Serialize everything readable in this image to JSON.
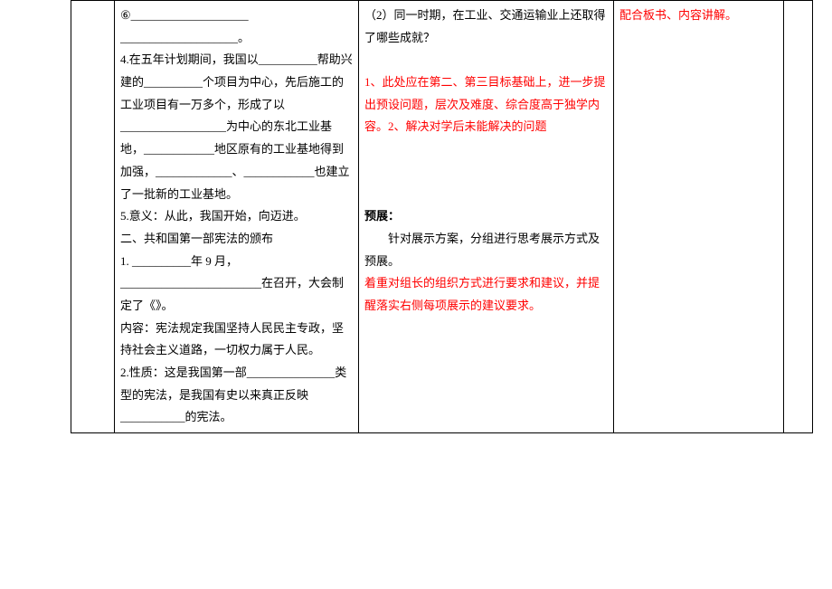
{
  "col1": {
    "line_6": "⑥____________________",
    "line_6b": "____________________。",
    "line_4": "4.在五年计划期间，我国以__________帮助兴建的__________个项目为中心，先后施工的工业项目有一万多个，形成了以__________________为中心的东北工业基地，____________地区原有的工业基地得到加强，_____________、____________也建立了一批新的工业基地。",
    "line_5": "5.意义：从此，我国开始，向迈进。",
    "sec2_title": "二、共和国第一部宪法的颁布",
    "sec2_1": "1. __________年 9 月，________________________在召开，大会制定了《》。",
    "sec2_content": "内容：宪法规定我国坚持人民民主专政，坚持社会主义道路，一切权力属于人民。",
    "sec2_2": "2.性质：这是我国第一部_______________类型的宪法，是我国有史以来真正反映___________的宪法。"
  },
  "col2": {
    "q2": "（2）同一时期，在工业、交通运输业上还取得了哪些成就？",
    "red1": "1、此处应在第二、第三目标基础上，进一步提出预设问题，层次及难度、综合度高于独学内容。2、解决对学后未能解决的问题",
    "preview_title": "预展：",
    "preview_body": "　　针对展示方案，分组进行思考展示方式及预展。",
    "red2": "着重对组长的组织方式进行要求和建议，并提醒落实右侧每项展示的建议要求。"
  },
  "col3": {
    "red_top": "配合板书、内容讲解。"
  }
}
